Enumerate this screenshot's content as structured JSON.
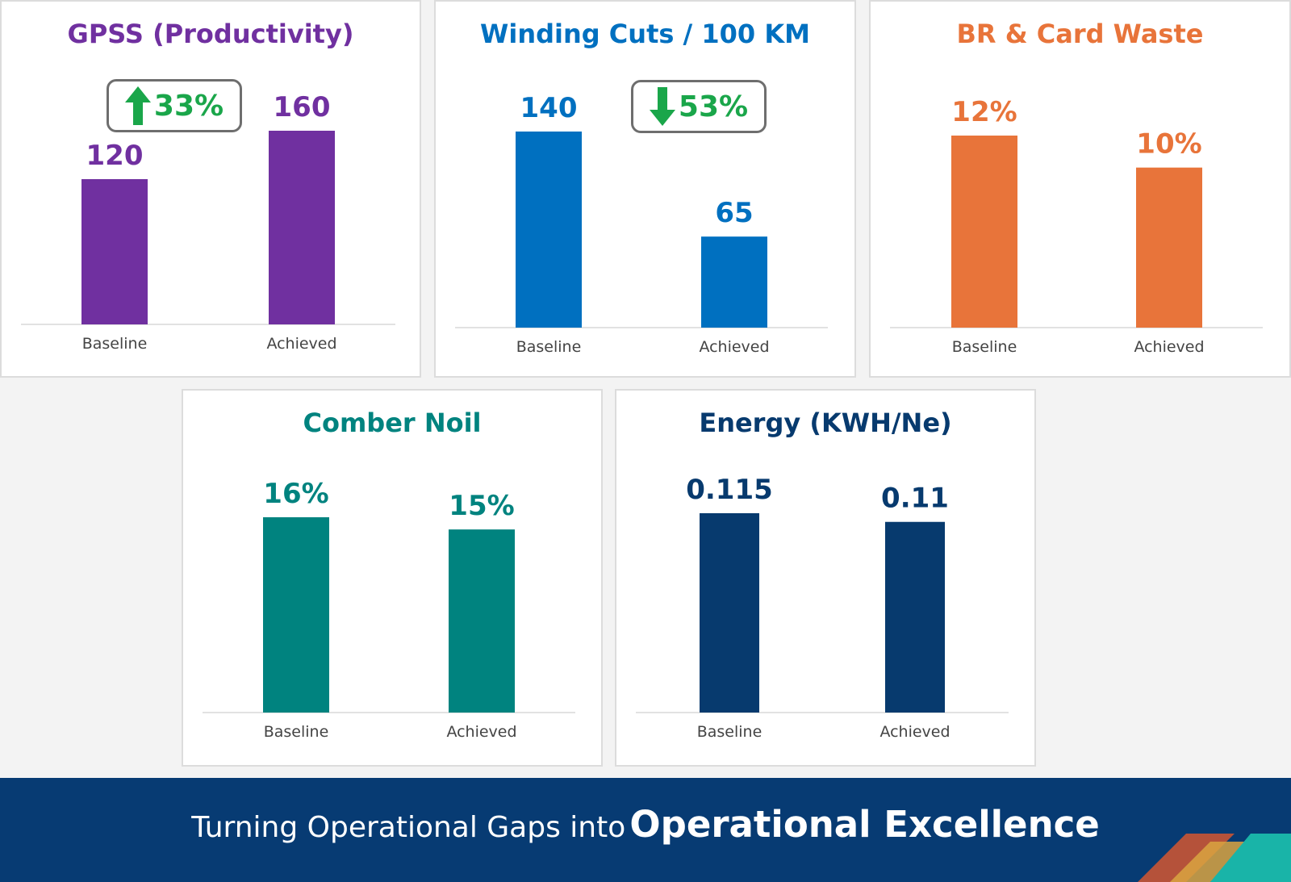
{
  "colors": {
    "purple": "#7030a0",
    "blue": "#0070c0",
    "orange": "#e8743a",
    "teal": "#00837f",
    "navy": "#073a6e",
    "green": "#1aa64a",
    "footer_bg": "#073b73"
  },
  "chart_data": [
    {
      "type": "bar",
      "title": "GPSS (Productivity)",
      "categories": [
        "Baseline",
        "Achieved"
      ],
      "values": [
        120,
        160
      ],
      "value_labels": [
        "120",
        "160"
      ],
      "color": "#7030a0",
      "badge": {
        "direction": "up",
        "text": "33%",
        "icon": "up-arrow-icon"
      }
    },
    {
      "type": "bar",
      "title": "Winding Cuts / 100 KM",
      "categories": [
        "Baseline",
        "Achieved"
      ],
      "values": [
        140,
        65
      ],
      "value_labels": [
        "140",
        "65"
      ],
      "color": "#0070c0",
      "badge": {
        "direction": "down",
        "text": "53%",
        "icon": "down-arrow-icon"
      }
    },
    {
      "type": "bar",
      "title": "BR & Card Waste",
      "categories": [
        "Baseline",
        "Achieved"
      ],
      "values": [
        12,
        10
      ],
      "value_labels": [
        "12%",
        "10%"
      ],
      "color": "#e8743a"
    },
    {
      "type": "bar",
      "title": "Comber Noil",
      "categories": [
        "Baseline",
        "Achieved"
      ],
      "values": [
        16,
        15
      ],
      "value_labels": [
        "16%",
        "15%"
      ],
      "color": "#00837f"
    },
    {
      "type": "bar",
      "title": "Energy (KWH/Ne)",
      "categories": [
        "Baseline",
        "Achieved"
      ],
      "values": [
        0.115,
        0.11
      ],
      "value_labels": [
        "0.115",
        "0.11"
      ],
      "color": "#073a6e"
    }
  ],
  "footer": {
    "lead": "Turning Operational Gaps into",
    "emphasis": "Operational Excellence"
  }
}
